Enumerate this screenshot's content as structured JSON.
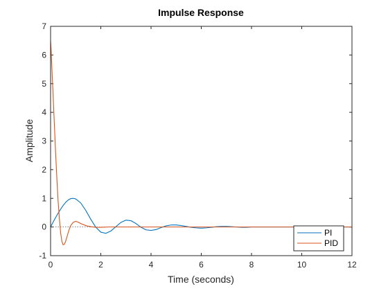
{
  "chart_data": {
    "type": "line",
    "title": "Impulse Response",
    "xlabel": "Time (seconds)",
    "ylabel": "Amplitude",
    "xlim": [
      0,
      12
    ],
    "ylim": [
      -1,
      7
    ],
    "x_ticks": [
      "0",
      "2",
      "4",
      "6",
      "8",
      "10",
      "12"
    ],
    "y_ticks": [
      "-1",
      "0",
      "1",
      "2",
      "3",
      "4",
      "5",
      "6",
      "7"
    ],
    "grid": false,
    "legend_position": "bottom-right",
    "zero_reference_line": "dotted",
    "series": [
      {
        "name": "PI",
        "color": "#0072BD",
        "x": [
          0,
          0.1,
          0.2,
          0.3,
          0.4,
          0.5,
          0.6,
          0.7,
          0.8,
          0.9,
          1.0,
          1.2,
          1.4,
          1.6,
          1.8,
          2.0,
          2.2,
          2.4,
          2.6,
          2.8,
          3.0,
          3.2,
          3.4,
          3.6,
          3.8,
          4.0,
          4.2,
          4.4,
          4.6,
          4.8,
          5.0,
          5.2,
          5.4,
          5.6,
          5.8,
          6.0,
          6.2,
          6.4,
          6.6,
          6.8,
          7.0,
          7.2,
          7.4,
          7.6,
          7.8,
          8.0,
          8.5,
          9.0,
          9.5,
          10.0,
          11.0,
          12.0
        ],
        "y": [
          0,
          0.17,
          0.33,
          0.48,
          0.62,
          0.75,
          0.86,
          0.94,
          0.99,
          1.0,
          0.98,
          0.84,
          0.58,
          0.27,
          -0.01,
          -0.18,
          -0.22,
          -0.14,
          0.01,
          0.16,
          0.24,
          0.22,
          0.12,
          -0.01,
          -0.1,
          -0.12,
          -0.09,
          -0.02,
          0.04,
          0.07,
          0.07,
          0.05,
          0.02,
          -0.01,
          -0.03,
          -0.04,
          -0.03,
          -0.01,
          0.01,
          0.02,
          0.02,
          0.01,
          0.0,
          -0.01,
          -0.01,
          0.0,
          0.0,
          0.0,
          0.0,
          0.0,
          0.0,
          0.0
        ]
      },
      {
        "name": "PID",
        "color": "#D95319",
        "x": [
          0,
          0.02,
          0.05,
          0.1,
          0.15,
          0.2,
          0.25,
          0.3,
          0.35,
          0.4,
          0.45,
          0.5,
          0.55,
          0.6,
          0.65,
          0.7,
          0.75,
          0.8,
          0.9,
          1.0,
          1.1,
          1.2,
          1.4,
          1.6,
          1.8,
          2.0,
          2.3,
          2.6,
          3.0,
          4.0,
          6.0,
          8.0,
          10.0,
          12.0
        ],
        "y": [
          6.5,
          6.2,
          5.6,
          4.6,
          3.6,
          2.6,
          1.7,
          0.9,
          0.3,
          -0.2,
          -0.5,
          -0.62,
          -0.6,
          -0.5,
          -0.35,
          -0.2,
          -0.06,
          0.05,
          0.16,
          0.2,
          0.17,
          0.12,
          0.05,
          0.01,
          -0.01,
          -0.01,
          0.0,
          0.0,
          0.0,
          0.0,
          0.0,
          0.0,
          0.0,
          0.0
        ]
      }
    ]
  }
}
